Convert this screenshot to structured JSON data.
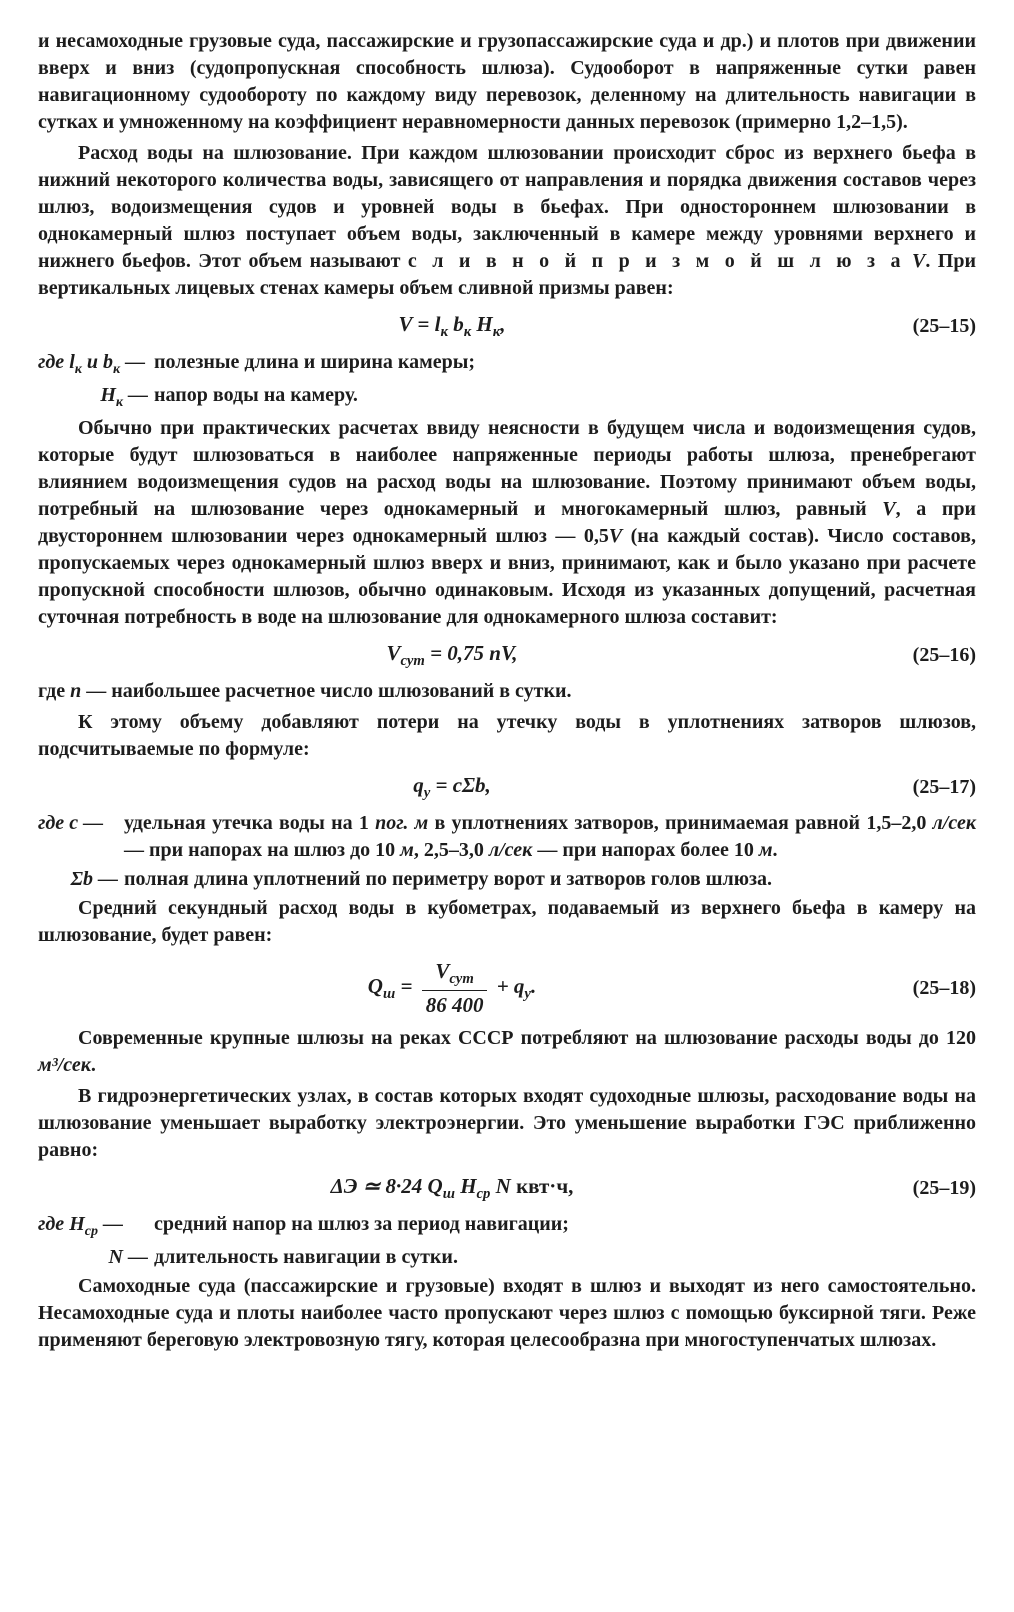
{
  "p1": "и несамоходные грузовые суда, пассажирские и грузопассажирские суда и др.) и плотов при движении вверх и вниз (судопропускная способность шлюза). Судооборот в напряженные сутки равен навигационному судообороту по каждому виду перевозок, деленному на длительность навигации в сутках и умноженному на коэффициент неравномерности данных перевозок (примерно 1,2–1,5).",
  "p2a": "Расход воды на шлюзование.",
  "p2b": " При каждом шлюзовании происходит сброс из верхнего бьефа в нижний некоторого количества воды, зависящего от направления и порядка движения составов через шлюз, водоизмещения судов и уровней воды в бьефах. При одностороннем шлюзовании в однокамерный шлюз поступает объем воды, заключенный в камере между уровнями верхнего и нижнего бьефов. Этот объем называют ",
  "p2c": "с л и в н о й   п р и з м о й   ш л ю з а",
  "p2d": "V",
  "p2e": ". При вертикальных лицевых стенах камеры объем сливной призмы равен:",
  "f1": "V = l<sub>к</sub> b<sub>к</sub> H<sub>к</sub>,",
  "f1n": "(25–15)",
  "w1a": "где <i>l</i><sub>к</sub> и <i>b</i><sub>к</sub> —",
  "w1at": "полезные длина и ширина камеры;",
  "w1b": "<i>H</i><sub>к</sub> —",
  "w1bt": "напор воды на камеру.",
  "p3": "Обычно при практических расчетах ввиду неясности в будущем числа и водоизмещения судов, которые будут шлюзоваться в наиболее напряженные периоды работы шлюза, пренебрегают влиянием водоизмещения судов на расход воды на шлюзование. Поэтому принимают объем воды, потребный на шлюзование через однокамерный и многокамерный шлюз, равный <i>V</i>, а при двустороннем шлюзовании через однокамерный шлюз — 0,5<i>V</i> (на каждый состав). Число составов, пропускаемых через однокамерный шлюз вверх и вниз, принимают, как и было указано при расчете пропускной способности шлюзов, обычно одинаковым. Исходя из указанных допущений, расчетная суточная потребность в воде на шлюзование для однокамерного шлюза составит:",
  "f2": "V<sub>сут</sub> = 0,75 nV,",
  "f2n": "(25–16)",
  "p4": "где <i>n</i> — наибольшее расчетное число шлюзований в сутки.",
  "p5": "К этому объему добавляют потери на утечку воды в уплотнениях затворов шлюзов, подсчитываемые по формуле:",
  "f3": "q<sub>у</sub> = cΣb,",
  "f3n": "(25–17)",
  "w3a": "где <i>c</i> —",
  "w3at": "удельная утечка воды на 1 <i>пог. м</i> в уплотнениях затворов, принимаемая равной 1,5–2,0 <i>л/сек</i> — при напорах на шлюз до 10 <i>м</i>, 2,5–3,0 <i>л/сек</i> — при напорах более 10 <i>м</i>.",
  "w3b": "Σ<i>b</i> —",
  "w3bt": "полная длина уплотнений по периметру ворот и затворов голов шлюза.",
  "p6": "Средний секундный расход воды в кубометрах, подаваемый из верхнего бьефа в камеру на шлюзование, будет равен:",
  "f4a": "Q<sub>ш</sub> = ",
  "f4num": "V<sub>сут</sub>",
  "f4den": "86 400",
  "f4b": " + q<sub>у</sub>.",
  "f4n": "(25–18)",
  "p7": "Современные крупные шлюзы на реках СССР потребляют на шлюзование расходы воды до 120 <i>м³/сек</i>.",
  "p8": "В гидроэнергетических узлах, в состав которых входят судоходные шлюзы, расходование воды на шлюзование уменьшает выработку электроэнергии. Это уменьшение выработки ГЭС приближенно равно:",
  "f5": "ΔЭ ≃ 8·24 Q<sub>ш</sub> H<sub>ср</sub> N  <span style='font-style:normal'>квт·ч,</span>",
  "f5n": "(25–19)",
  "w5a": "где <i>H</i><sub>ср</sub> —",
  "w5at": "средний напор на шлюз за период навигации;",
  "w5b": "<i>N</i> —",
  "w5bt": "длительность навигации в сутки.",
  "p9": "Самоходные суда (пассажирские и грузовые) входят в шлюз и выходят из него самостоятельно. Несамоходные суда и плоты наиболее часто пропускают через шлюз с помощью буксирной тяги. Реже применяют береговую электровозную тягу, которая целесообразна при многоступенчатых шлюзах."
}
